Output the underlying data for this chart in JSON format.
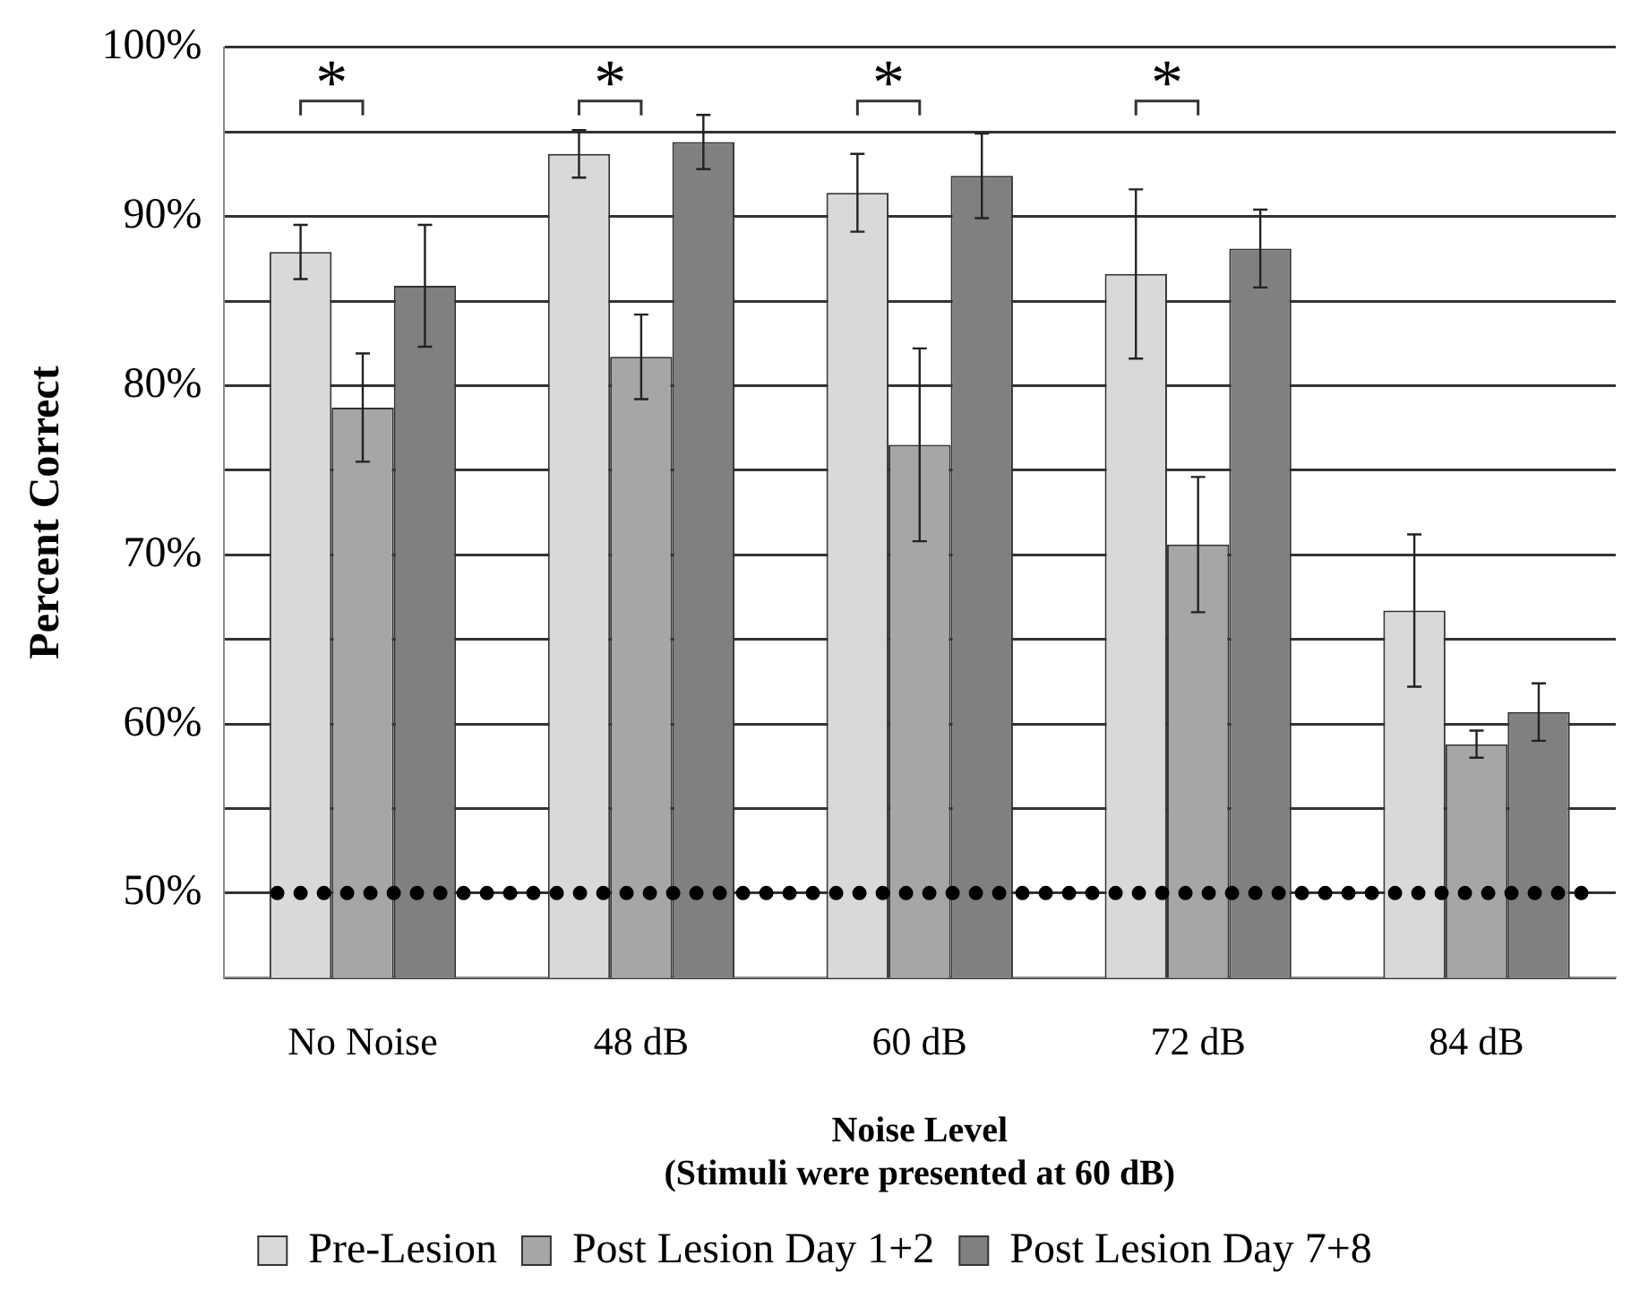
{
  "chart_data": {
    "type": "bar",
    "xlabel": "Noise Level",
    "ylabel": "Percent Correct",
    "categories": [
      "No Noise",
      "48 dB",
      "60 dB",
      "72 dB",
      "84 dB"
    ],
    "series": [
      {
        "name": "Pre-Lesion",
        "color": "#d9d9d9",
        "values": [
          87.9,
          93.7,
          91.4,
          86.6,
          66.7
        ],
        "errors": [
          1.6,
          1.4,
          2.3,
          5,
          4.5
        ]
      },
      {
        "name": "Post Lesion Day 1+2",
        "color": "#a6a6a6",
        "values": [
          78.7,
          81.7,
          76.5,
          70.6,
          58.8
        ],
        "errors": [
          3.2,
          2.5,
          5.7,
          4,
          0.8
        ]
      },
      {
        "name": "Post Lesion Day 7+8",
        "color": "#808080",
        "values": [
          85.9,
          94.4,
          92.4,
          88.1,
          60.7
        ],
        "errors": [
          3.6,
          1.6,
          2.5,
          2.3,
          1.7
        ]
      }
    ],
    "ylim": [
      45,
      100
    ],
    "yticks": [
      {
        "value": 45,
        "label": null
      },
      {
        "value": 50,
        "label": "50%"
      },
      {
        "value": 55,
        "label": null
      },
      {
        "value": 60,
        "label": "60%"
      },
      {
        "value": 65,
        "label": null
      },
      {
        "value": 70,
        "label": "70%"
      },
      {
        "value": 75,
        "label": null
      },
      {
        "value": 80,
        "label": "80%"
      },
      {
        "value": 85,
        "label": null
      },
      {
        "value": 90,
        "label": "90%"
      },
      {
        "value": 95,
        "label": null
      },
      {
        "value": 100,
        "label": "100%"
      }
    ],
    "grid": "y",
    "legend": "bottom",
    "ref_lines": [
      {
        "axis": "y",
        "value": 50,
        "color": "#000000",
        "line_style": "dotted"
      }
    ],
    "annotations": [
      "*",
      "*",
      "*",
      "*",
      "(Stimuli were presented at 60 dB)"
    ]
  }
}
